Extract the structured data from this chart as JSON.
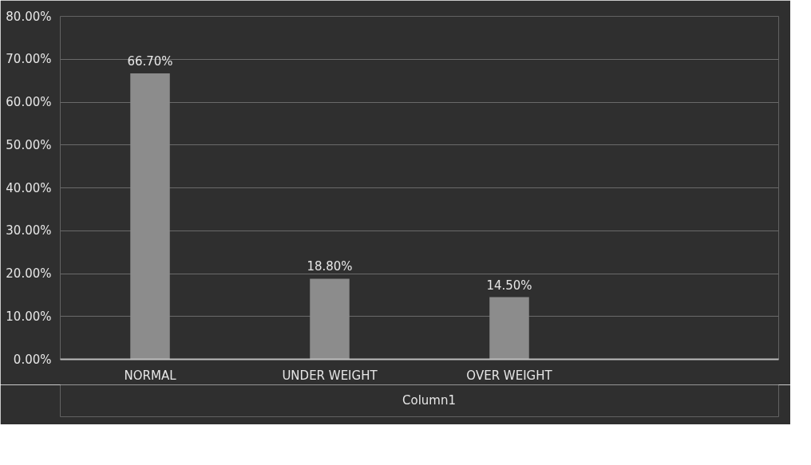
{
  "chart_data": {
    "type": "bar",
    "categories": [
      "NORMAL",
      "UNDER WEIGHT",
      "OVER WEIGHT",
      null
    ],
    "series": [
      {
        "name": "Column1",
        "color": "#8c8c8c",
        "values": [
          66.7,
          18.8,
          14.5,
          null
        ],
        "value_labels": [
          "66.70%",
          "18.80%",
          "14.50%",
          null
        ]
      }
    ],
    "ylim": [
      0,
      80
    ],
    "yticks": [
      {
        "value": 0,
        "label": "0.00%"
      },
      {
        "value": 10,
        "label": "10.00%"
      },
      {
        "value": 20,
        "label": "20.00%"
      },
      {
        "value": 30,
        "label": "30.00%"
      },
      {
        "value": 40,
        "label": "40.00%"
      },
      {
        "value": 50,
        "label": "50.00%"
      },
      {
        "value": 60,
        "label": "60.00%"
      },
      {
        "value": 70,
        "label": "70.00%"
      },
      {
        "value": 80,
        "label": "80.00%"
      }
    ],
    "grid": "y",
    "legend": "bottom"
  }
}
